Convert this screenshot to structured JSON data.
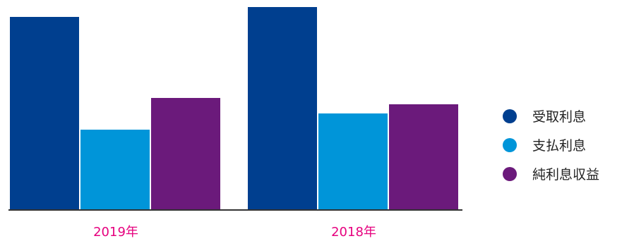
{
  "chart_data": {
    "type": "bar",
    "categories": [
      "2019年",
      "2018年"
    ],
    "series": [
      {
        "name": "受取利息",
        "color": "#003f8f",
        "values": [
          273,
          287
        ]
      },
      {
        "name": "支払利息",
        "color": "#0095d9",
        "values": [
          113,
          136
        ]
      },
      {
        "name": "純利息収益",
        "color": "#6b1a7b",
        "values": [
          158,
          149
        ]
      }
    ],
    "ylim": [
      0,
      290
    ],
    "grid": false,
    "legend_position": "right",
    "category_label_color": "#e6007e",
    "axis_color": "#333333"
  }
}
